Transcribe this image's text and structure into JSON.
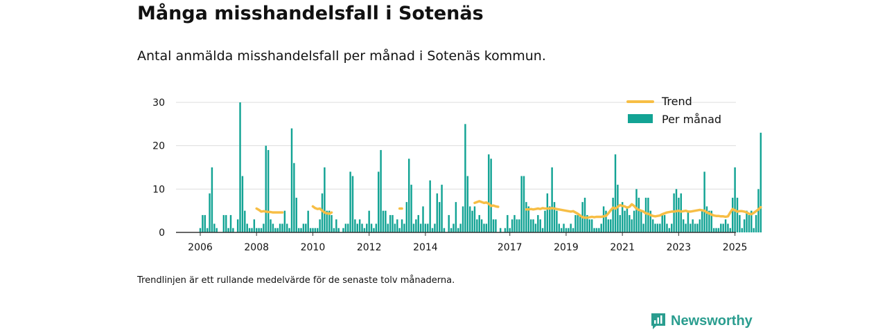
{
  "header": {
    "title": "Många misshandelsfall i Sotenäs",
    "subtitle": "Antal anmälda misshandelsfall per månad i Sotenäs kommun."
  },
  "footer": {
    "note": "Trendlinjen är ett rullande medelvärde för de senaste tolv månaderna.",
    "brand": "Newsworthy",
    "brand_icon": "newsworthy-logo-icon"
  },
  "colors": {
    "bar": "#12a394",
    "trend": "#f7be45",
    "grid": "#dddddd",
    "axis": "#333333",
    "brand": "#2a9d8f"
  },
  "chart_data": {
    "type": "bar",
    "x_unit": "month",
    "x_start": "2006-01",
    "x_end": "2025-07",
    "ylim": [
      0,
      30
    ],
    "yticks": [
      0,
      10,
      20,
      30
    ],
    "xticks": [
      "2006",
      "2008",
      "2010",
      "2012",
      "2014",
      "2017",
      "2019",
      "2021",
      "2023",
      "2025"
    ],
    "grid": true,
    "legend_position": "top-right",
    "series": [
      {
        "name": "Per månad",
        "kind": "bar",
        "values": [
          1,
          4,
          4,
          1,
          9,
          15,
          2,
          1,
          0,
          0,
          4,
          4,
          1,
          4,
          1,
          0,
          3,
          30,
          13,
          5,
          2,
          1,
          1,
          3,
          1,
          1,
          1,
          2,
          20,
          19,
          3,
          2,
          1,
          1,
          2,
          2,
          5,
          2,
          1,
          24,
          16,
          8,
          1,
          1,
          2,
          2,
          5,
          1,
          1,
          1,
          1,
          3,
          9,
          15,
          5,
          5,
          4,
          1,
          3,
          1,
          0,
          1,
          2,
          2,
          14,
          13,
          3,
          2,
          3,
          2,
          1,
          2,
          5,
          2,
          1,
          2,
          14,
          19,
          5,
          5,
          2,
          4,
          4,
          2,
          3,
          1,
          3,
          2,
          7,
          17,
          11,
          2,
          3,
          4,
          2,
          6,
          2,
          2,
          12,
          1,
          2,
          9,
          7,
          11,
          1,
          0,
          4,
          1,
          2,
          7,
          1,
          2,
          6,
          25,
          13,
          6,
          5,
          6,
          3,
          4,
          3,
          2,
          2,
          18,
          17,
          3,
          3,
          0,
          1,
          0,
          1,
          4,
          1,
          3,
          4,
          3,
          3,
          13,
          13,
          7,
          6,
          3,
          3,
          2,
          4,
          3,
          1,
          5,
          9,
          6,
          15,
          7,
          5,
          2,
          1,
          2,
          1,
          1,
          2,
          1,
          4,
          4,
          4,
          7,
          8,
          4,
          3,
          3,
          1,
          1,
          1,
          2,
          6,
          5,
          3,
          3,
          8,
          18,
          11,
          4,
          7,
          5,
          6,
          4,
          3,
          5,
          10,
          8,
          5,
          2,
          8,
          8,
          5,
          3,
          2,
          2,
          2,
          4,
          4,
          2,
          1,
          2,
          9,
          10,
          8,
          9,
          3,
          2,
          5,
          2,
          3,
          2,
          2,
          3,
          5,
          14,
          6,
          5,
          5,
          1,
          1,
          1,
          2,
          2,
          3,
          2,
          1,
          8,
          15,
          8,
          4,
          1,
          3,
          5,
          4,
          5,
          1,
          4,
          10,
          23
        ]
      },
      {
        "name": "Trend",
        "kind": "line",
        "values": [
          null,
          null,
          null,
          null,
          null,
          null,
          null,
          null,
          null,
          null,
          null,
          null,
          null,
          null,
          null,
          null,
          null,
          null,
          null,
          null,
          null,
          null,
          null,
          null,
          5.5,
          5.2,
          4.8,
          4.9,
          4.8,
          4.7,
          4.7,
          4.6,
          4.6,
          4.6,
          4.6,
          4.6,
          null,
          null,
          null,
          null,
          null,
          null,
          null,
          null,
          null,
          null,
          null,
          null,
          6.0,
          5.6,
          5.4,
          5.5,
          5.0,
          4.6,
          4.4,
          4.3,
          4.6,
          null,
          null,
          null,
          null,
          null,
          null,
          null,
          null,
          null,
          null,
          null,
          null,
          null,
          null,
          null,
          null,
          null,
          null,
          null,
          null,
          null,
          null,
          null,
          null,
          null,
          null,
          null,
          null,
          5.5,
          5.5,
          null,
          null,
          null,
          null,
          null,
          null,
          null,
          null,
          null,
          null,
          null,
          null,
          null,
          null,
          null,
          null,
          null,
          null,
          null,
          null,
          null,
          null,
          null,
          null,
          null,
          null,
          null,
          null,
          null,
          null,
          6.8,
          7.0,
          7.2,
          7.0,
          6.8,
          6.9,
          6.6,
          6.1,
          6.2,
          6.0,
          5.9,
          null,
          null,
          null,
          null,
          null,
          null,
          null,
          null,
          null,
          null,
          null,
          5.3,
          5.3,
          5.4,
          5.3,
          5.4,
          5.5,
          5.4,
          5.6,
          5.5,
          5.5,
          5.5,
          5.6,
          5.5,
          5.4,
          5.3,
          5.2,
          5.1,
          5.0,
          4.9,
          4.8,
          4.9,
          4.6,
          4.3,
          3.9,
          3.5,
          3.4,
          3.4,
          3.5,
          3.6,
          3.5,
          3.6,
          3.6,
          3.6,
          3.7,
          3.8,
          4.4,
          5.1,
          5.7,
          5.5,
          5.9,
          6.3,
          6.1,
          6.0,
          5.7,
          5.9,
          6.5,
          6.1,
          5.5,
          5.2,
          5.0,
          4.8,
          4.4,
          4.3,
          4.0,
          3.8,
          3.7,
          3.8,
          3.9,
          4.2,
          4.4,
          4.6,
          4.7,
          4.8,
          4.8,
          4.9,
          5.0,
          4.8,
          4.9,
          5.0,
          4.8,
          4.8,
          4.9,
          5.0,
          5.1,
          5.2,
          5.1,
          5.0,
          4.6,
          4.4,
          4.1,
          3.9,
          3.8,
          3.8,
          3.7,
          3.7,
          3.6,
          3.7,
          4.6,
          5.4,
          5.1,
          4.8,
          4.9,
          4.9,
          4.8,
          4.6,
          4.3,
          4.2,
          4.5,
          4.9,
          5.3,
          5.8
        ]
      }
    ]
  }
}
